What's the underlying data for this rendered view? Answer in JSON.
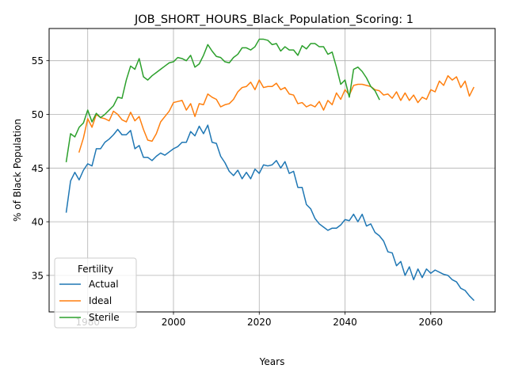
{
  "chart_data": {
    "type": "line",
    "title": "JOB_SHORT_HOURS_Black_Population_Scoring: 1",
    "xlabel": "Years",
    "ylabel": "% of Black Population",
    "xlim": [
      1971,
      2075
    ],
    "ylim": [
      31.6,
      58.0
    ],
    "xticks": [
      1980,
      2000,
      2020,
      2040,
      2060
    ],
    "yticks": [
      35,
      40,
      45,
      50,
      55
    ],
    "xtick_labels": [
      "1980",
      "2000",
      "2020",
      "2040",
      "2060"
    ],
    "ytick_labels": [
      "35",
      "40",
      "45",
      "50",
      "55"
    ],
    "grid": true,
    "legend": {
      "title": "Fertility",
      "position": "lower-left"
    },
    "series": [
      {
        "name": "Actual",
        "color": "#1f77b4",
        "x": [
          1975,
          1976,
          1977,
          1978,
          1979,
          1980,
          1981,
          1982,
          1983,
          1984,
          1985,
          1986,
          1987,
          1988,
          1989,
          1990,
          1991,
          1992,
          1993,
          1994,
          1995,
          1996,
          1997,
          1998,
          1999,
          2000,
          2001,
          2002,
          2003,
          2004,
          2005,
          2006,
          2007,
          2008,
          2009,
          2010,
          2011,
          2012,
          2013,
          2014,
          2015,
          2016,
          2017,
          2018,
          2019,
          2020,
          2021,
          2022,
          2023,
          2024,
          2025,
          2026,
          2027,
          2028,
          2029,
          2030,
          2031,
          2032,
          2033,
          2034,
          2035,
          2036,
          2037,
          2038,
          2039,
          2040,
          2041,
          2042,
          2043,
          2044,
          2045,
          2046,
          2047,
          2048,
          2049,
          2050,
          2051,
          2052,
          2053,
          2054,
          2055,
          2056,
          2057,
          2058,
          2059,
          2060,
          2061,
          2062,
          2063,
          2064,
          2065,
          2066,
          2067,
          2068,
          2069,
          2070
        ],
        "y": [
          40.9,
          43.8,
          44.6,
          43.9,
          44.8,
          45.4,
          45.2,
          46.8,
          46.8,
          47.4,
          47.7,
          48.1,
          48.6,
          48.1,
          48.1,
          48.5,
          46.8,
          47.1,
          46.0,
          46.0,
          45.7,
          46.1,
          46.4,
          46.2,
          46.5,
          46.8,
          47.0,
          47.4,
          47.4,
          48.4,
          48.0,
          48.9,
          48.2,
          49.0,
          47.4,
          47.3,
          46.1,
          45.5,
          44.7,
          44.3,
          44.8,
          44.0,
          44.6,
          44.0,
          44.9,
          44.5,
          45.3,
          45.2,
          45.3,
          45.7,
          45.0,
          45.6,
          44.5,
          44.7,
          43.2,
          43.2,
          41.6,
          41.2,
          40.3,
          39.8,
          39.5,
          39.2,
          39.4,
          39.4,
          39.7,
          40.2,
          40.1,
          40.7,
          40.0,
          40.7,
          39.6,
          39.8,
          39.0,
          38.7,
          38.2,
          37.2,
          37.1,
          35.9,
          36.3,
          35.0,
          35.8,
          34.6,
          35.6,
          34.8,
          35.6,
          35.2,
          35.5,
          35.3,
          35.1,
          35.0,
          34.6,
          34.4,
          33.8,
          33.6,
          33.1,
          32.7
        ]
      },
      {
        "name": "Ideal",
        "color": "#ff7f0e",
        "x": [
          1978,
          1979,
          1980,
          1981,
          1982,
          1983,
          1984,
          1985,
          1986,
          1987,
          1988,
          1989,
          1990,
          1991,
          1992,
          1993,
          1994,
          1995,
          1996,
          1997,
          1998,
          1999,
          2000,
          2001,
          2002,
          2003,
          2004,
          2005,
          2006,
          2007,
          2008,
          2009,
          2010,
          2011,
          2012,
          2013,
          2014,
          2015,
          2016,
          2017,
          2018,
          2019,
          2020,
          2021,
          2022,
          2023,
          2024,
          2025,
          2026,
          2027,
          2028,
          2029,
          2030,
          2031,
          2032,
          2033,
          2034,
          2035,
          2036,
          2037,
          2038,
          2039,
          2040,
          2041,
          2042,
          2043,
          2044,
          2045,
          2046,
          2047,
          2048,
          2049,
          2050,
          2051,
          2052,
          2053,
          2054,
          2055,
          2056,
          2057,
          2058,
          2059,
          2060,
          2061,
          2062,
          2063,
          2064,
          2065,
          2066,
          2067,
          2068,
          2069,
          2070
        ],
        "y": [
          46.5,
          47.8,
          49.6,
          48.8,
          50.0,
          49.7,
          49.6,
          49.4,
          50.3,
          50.0,
          49.5,
          49.3,
          50.2,
          49.4,
          49.8,
          48.6,
          47.6,
          47.5,
          48.2,
          49.3,
          49.8,
          50.3,
          51.1,
          51.2,
          51.3,
          50.4,
          51.0,
          49.8,
          51.0,
          50.9,
          51.9,
          51.6,
          51.4,
          50.7,
          50.9,
          51.0,
          51.4,
          52.1,
          52.5,
          52.6,
          53.0,
          52.3,
          53.2,
          52.5,
          52.6,
          52.6,
          52.9,
          52.3,
          52.5,
          51.9,
          51.8,
          51.0,
          51.1,
          50.7,
          50.9,
          50.7,
          51.2,
          50.4,
          51.3,
          50.9,
          52.0,
          51.4,
          52.3,
          51.8,
          52.7,
          52.8,
          52.8,
          52.7,
          52.6,
          52.3,
          52.2,
          51.8,
          51.9,
          51.5,
          52.1,
          51.3,
          52.0,
          51.3,
          51.8,
          51.1,
          51.6,
          51.4,
          52.3,
          52.1,
          53.1,
          52.7,
          53.6,
          53.2,
          53.5,
          52.5,
          53.1,
          51.7,
          52.5
        ]
      },
      {
        "name": "Sterile",
        "color": "#2ca02c",
        "x": [
          1975,
          1976,
          1977,
          1978,
          1979,
          1980,
          1981,
          1982,
          1983,
          1984,
          1985,
          1986,
          1987,
          1988,
          1989,
          1990,
          1991,
          1992,
          1993,
          1994,
          1995,
          1996,
          1997,
          1998,
          1999,
          2000,
          2001,
          2002,
          2003,
          2004,
          2005,
          2006,
          2007,
          2008,
          2009,
          2010,
          2011,
          2012,
          2013,
          2014,
          2015,
          2016,
          2017,
          2018,
          2019,
          2020,
          2021,
          2022,
          2023,
          2024,
          2025,
          2026,
          2027,
          2028,
          2029,
          2030,
          2031,
          2032,
          2033,
          2034,
          2035,
          2036,
          2037,
          2038,
          2039,
          2040,
          2041,
          2042,
          2043,
          2044,
          2045,
          2046,
          2047,
          2048
        ],
        "y": [
          45.6,
          48.2,
          47.9,
          48.8,
          49.2,
          50.4,
          49.3,
          50.1,
          49.7,
          50.0,
          50.4,
          50.8,
          51.6,
          51.5,
          53.2,
          54.5,
          54.2,
          55.2,
          53.5,
          53.2,
          53.6,
          53.9,
          54.2,
          54.5,
          54.8,
          54.9,
          55.3,
          55.2,
          55.0,
          55.5,
          54.4,
          54.7,
          55.5,
          56.5,
          55.9,
          55.4,
          55.3,
          54.9,
          54.8,
          55.3,
          55.6,
          56.2,
          56.2,
          56.0,
          56.3,
          57.0,
          57.0,
          56.9,
          56.5,
          56.6,
          55.9,
          56.3,
          56.0,
          56.0,
          55.5,
          56.4,
          56.1,
          56.6,
          56.6,
          56.3,
          56.3,
          55.6,
          55.8,
          54.4,
          52.8,
          53.2,
          51.6,
          54.2,
          54.4,
          54.0,
          53.4,
          52.6,
          52.2,
          51.4
        ]
      }
    ]
  }
}
